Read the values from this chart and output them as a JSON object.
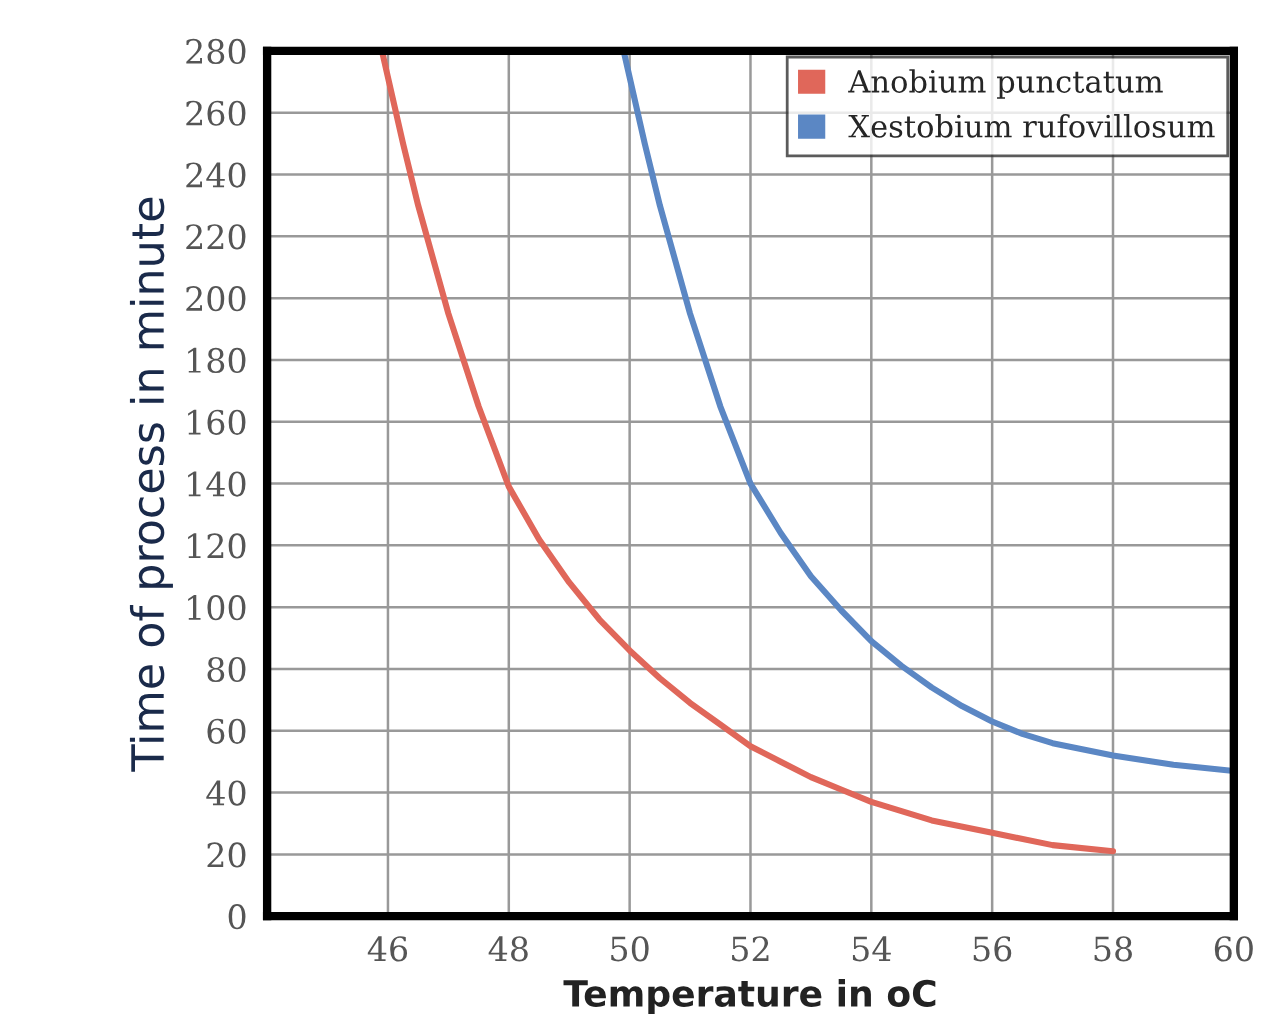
{
  "chart_data": {
    "type": "line",
    "xlabel": "Temperature in oC",
    "ylabel": "Time of process in minute",
    "series": [
      {
        "name": "Anobium punctatum",
        "color": "#e0675a",
        "x": [
          45.9,
          46.25,
          46.5,
          47,
          47.5,
          48,
          48.5,
          49,
          49.5,
          50,
          50.5,
          51,
          51.5,
          52,
          52.5,
          53,
          53.5,
          54,
          55,
          56,
          57,
          58
        ],
        "values": [
          280,
          250,
          230,
          195,
          165,
          139,
          122,
          108,
          96,
          86,
          77,
          69,
          62,
          55,
          50,
          45,
          41,
          37,
          31,
          27,
          23,
          21
        ]
      },
      {
        "name": "Xestobium rufovillosum",
        "color": "#5b87c4",
        "x": [
          49.9,
          50.25,
          50.5,
          51,
          51.5,
          52,
          52.5,
          53,
          53.5,
          54,
          54.5,
          55,
          55.5,
          56,
          56.5,
          57,
          58,
          59,
          60
        ],
        "values": [
          280,
          250,
          230,
          195,
          165,
          140,
          124,
          110,
          99,
          89,
          81,
          74,
          68,
          63,
          59,
          56,
          52,
          49,
          47
        ]
      }
    ],
    "xlim": [
      44,
      60
    ],
    "xticks": [
      46,
      48,
      50,
      52,
      54,
      56,
      58,
      60
    ],
    "ylim": [
      0,
      280
    ],
    "yticks": [
      0,
      20,
      40,
      60,
      80,
      100,
      120,
      140,
      160,
      180,
      200,
      220,
      240,
      260,
      280
    ],
    "grid": true,
    "legend": "top right",
    "marker": "none",
    "line_style": "solid"
  }
}
